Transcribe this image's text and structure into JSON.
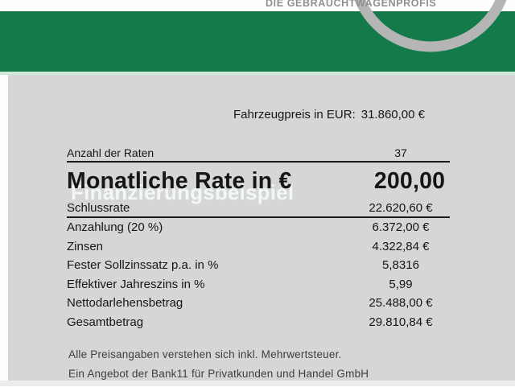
{
  "brand": {
    "tagline": "DIE GEBRAUCHTWAGENPROFIS"
  },
  "header": {
    "title": "Finanzierungsbeispiel"
  },
  "price_line": {
    "label": "Fahrzeugpreis in EUR:",
    "value": "31.860,00 €"
  },
  "table": {
    "rows": [
      {
        "label": "Anzahl der Raten",
        "value": "37",
        "style": "first"
      },
      {
        "label": "Monatliche Rate in €",
        "value": "200,00",
        "style": "big"
      },
      {
        "label": "Schlussrate",
        "value": "22.620,60 €",
        "style": "schluss"
      },
      {
        "label": "Anzahlung (20 %)",
        "value": "6.372,00 €",
        "style": "normal"
      },
      {
        "label": "Zinsen",
        "value": "4.322,84 €",
        "style": "normal"
      },
      {
        "label": "Fester Sollzinssatz p.a. in %",
        "value": "5,8316",
        "style": "normal"
      },
      {
        "label": "Effektiver Jahreszins in %",
        "value": "5,99",
        "style": "normal"
      },
      {
        "label": "Nettodarlehensbetrag",
        "value": "25.488,00 €",
        "style": "normal"
      },
      {
        "label": "Gesamtbetrag",
        "value": "29.810,84 €",
        "style": "normal"
      }
    ]
  },
  "footer": {
    "line1": "Alle Preisangaben verstehen sich inkl. Mehrwertsteuer.",
    "line2": "Ein Angebot der Bank11 für Privatkunden und Handel GmbH"
  },
  "colors": {
    "banner_green": "#147a4b",
    "panel_gray": "#d6d6d6",
    "logo_gray": "#b5b5b5",
    "accent_mint": "#cfe7da"
  }
}
